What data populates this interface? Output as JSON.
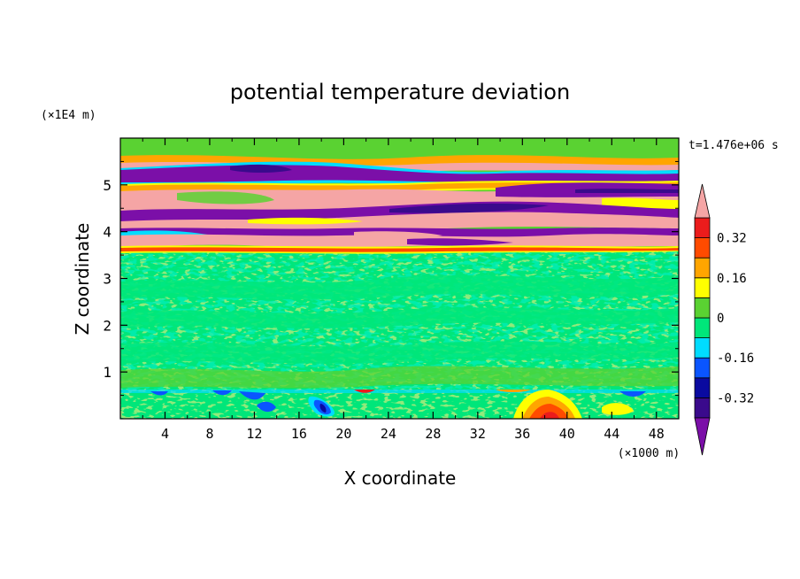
{
  "chart_data": {
    "type": "heatmap",
    "title": "potential temperature deviation",
    "xlabel": "X coordinate",
    "ylabel": "Z coordinate",
    "x_unit_label": "(×1000 m)",
    "y_unit_label": "(×1E4 m)",
    "time_label": "t=1.476e+06 s",
    "xlim": [
      0,
      50
    ],
    "ylim": [
      0,
      6
    ],
    "x_ticks": [
      4,
      8,
      12,
      16,
      20,
      24,
      28,
      32,
      36,
      40,
      44,
      48
    ],
    "y_ticks": [
      1,
      2,
      3,
      4,
      5
    ],
    "colorbar": {
      "levels": [
        -0.4,
        -0.32,
        -0.24,
        -0.16,
        -0.08,
        0,
        0.08,
        0.16,
        0.24,
        0.32,
        0.4
      ],
      "tick_labels": [
        "0.32",
        "0.16",
        "0",
        "-0.16",
        "-0.32"
      ],
      "tick_values": [
        0.32,
        0.16,
        0,
        -0.16,
        -0.32
      ],
      "colors_low_to_high": [
        "#7b0fa8",
        "#3a0a8c",
        "#0a0aa0",
        "#0a55ff",
        "#00dcff",
        "#00e67a",
        "#5ad232",
        "#ffff00",
        "#ffa500",
        "#ff4b00",
        "#eb1c1c",
        "#f5a5a5"
      ],
      "extend": "both"
    },
    "regions": [
      {
        "z_range": [
          0,
          0.65
        ],
        "description": "near-surface noisy layer",
        "max_anomaly_x": [
          36,
          40
        ]
      },
      {
        "z_range": [
          0.65,
          3.5
        ],
        "description": "weak deviations near zero"
      },
      {
        "z_range": [
          3.5,
          5.6
        ],
        "description": "alternating strong positive/negative bands"
      },
      {
        "z_range": [
          5.6,
          6
        ],
        "description": "upper layer near zero"
      }
    ]
  }
}
